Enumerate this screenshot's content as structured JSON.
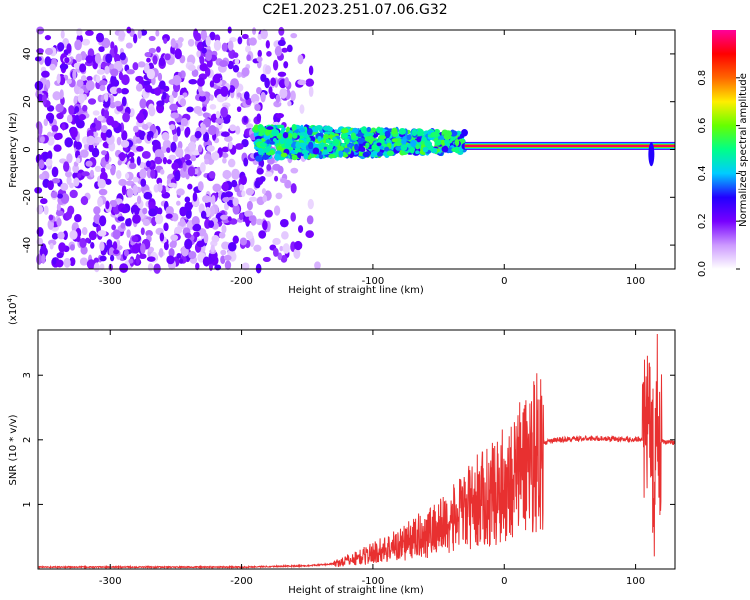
{
  "title": "C2E1.2023.251.07.06.G32",
  "chart_data": [
    {
      "type": "heatmap",
      "xlabel": "Height of straight line (km)",
      "ylabel": "Frequency (Hz)",
      "xlim": [
        -355,
        130
      ],
      "ylim": [
        -50,
        50
      ],
      "xticks": [
        -300,
        -200,
        -100,
        0,
        100
      ],
      "yticks": [
        -40,
        -20,
        0,
        20,
        40
      ],
      "colorbar": {
        "label": "Normalized spectral amplitude",
        "range": [
          0,
          1
        ],
        "ticks": [
          "0.0",
          "0.2",
          "0.4",
          "0.6",
          "0.8"
        ],
        "colors": [
          "#ffffff",
          "#cc99ff",
          "#7700ff",
          "#2200ff",
          "#00ccff",
          "#00ff88",
          "#66ff00",
          "#ffee00",
          "#ff6600",
          "#ff0000",
          "#ff0099"
        ]
      },
      "features": [
        {
          "name": "diffuse noise",
          "x_range": [
            -355,
            -140
          ],
          "freq_range": [
            -50,
            50
          ],
          "amplitude": 0.15
        },
        {
          "name": "spread signal",
          "x_range": [
            -190,
            -30
          ],
          "center_freq": 3,
          "half_width": 7,
          "amplitude": 0.45
        },
        {
          "name": "narrow line",
          "x_range": [
            -30,
            130
          ],
          "center_freq": 1.5,
          "half_width": 1.5,
          "amplitude": 0.95
        }
      ],
      "grid": false
    },
    {
      "type": "line",
      "xlabel": "Height of straight line (km)",
      "ylabel": "SNR (10 * v/v)",
      "yscale_label": "(x10",
      "yscale_exponent": "4",
      "xlim": [
        -355,
        130
      ],
      "ylim": [
        0,
        3.7
      ],
      "xticks": [
        -300,
        -200,
        -100,
        0,
        100
      ],
      "yticks": [
        1,
        2,
        3
      ],
      "color": "#e83030",
      "grid": false,
      "series": [
        {
          "x": [
            -355,
            -300,
            -250,
            -200,
            -150,
            -130,
            -110,
            -100,
            -80,
            -60,
            -40,
            -30,
            -20,
            -10,
            0,
            10,
            20,
            30,
            40,
            60,
            80,
            100,
            108,
            112,
            114,
            116,
            118,
            122,
            130
          ],
          "y": [
            0.03,
            0.03,
            0.03,
            0.03,
            0.05,
            0.08,
            0.18,
            0.25,
            0.38,
            0.55,
            0.75,
            0.9,
            1.05,
            1.15,
            1.3,
            1.5,
            1.75,
            1.95,
            2.0,
            2.02,
            2.02,
            2.0,
            2.05,
            2.3,
            1.2,
            2.6,
            2.0,
            1.97,
            1.96
          ]
        }
      ]
    }
  ]
}
